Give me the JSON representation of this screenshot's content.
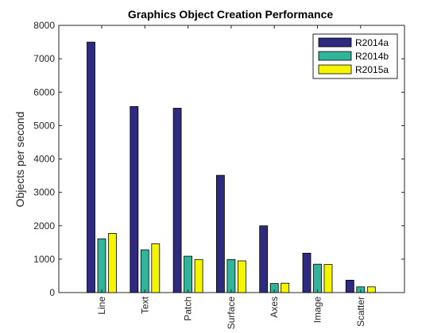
{
  "chart_data": {
    "type": "bar",
    "title": "Graphics Object Creation Performance",
    "xlabel": "",
    "ylabel": "Objects per second",
    "ylim": [
      0,
      8000
    ],
    "yticks": [
      "0",
      "1000",
      "2000",
      "3000",
      "4000",
      "5000",
      "6000",
      "7000",
      "8000"
    ],
    "categories": [
      "Line",
      "Text",
      "Patch",
      "Surface",
      "Axes",
      "Image",
      "Scatter"
    ],
    "series": [
      {
        "name": "R2014a",
        "color": "#2e2a7e",
        "values": [
          7500,
          5570,
          5520,
          3510,
          2000,
          1180,
          370
        ]
      },
      {
        "name": "R2014b",
        "color": "#30b59b",
        "values": [
          1610,
          1280,
          1090,
          990,
          270,
          850,
          170
        ]
      },
      {
        "name": "R2015a",
        "color": "#f5f500",
        "values": [
          1770,
          1460,
          990,
          950,
          280,
          840,
          170
        ]
      }
    ],
    "grid": false,
    "legend_position": "top-right"
  }
}
